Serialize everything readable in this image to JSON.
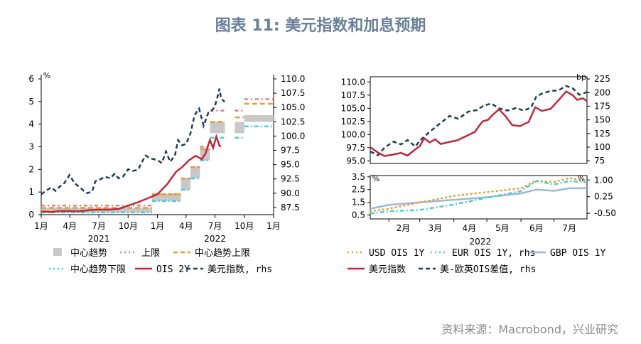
{
  "page": {
    "title": "图表 11: 美元指数和加息预期",
    "source": "资料来源：Macrobond，兴业研究"
  },
  "colors": {
    "dxy": "#c0283a",
    "spread": "#233a5c",
    "center": "#c8c8c8",
    "upper": "#e8788c",
    "upperBand": "#e2a030",
    "lowerBand": "#4ecdd8",
    "usd": "#e2a030",
    "eur": "#4ecdd8",
    "gbp": "#9db8d8"
  },
  "chart_data": [
    {
      "type": "line",
      "panel": "left",
      "x_range": [
        "2021-01-01",
        "2023-01-01"
      ],
      "x_ticks": [
        "1月",
        "4月",
        "7月",
        "10月",
        "1月",
        "4月",
        "7月",
        "10月",
        "1月"
      ],
      "year_labels": [
        "2021",
        "2022"
      ],
      "y_left": {
        "unit": "%",
        "range": [
          0,
          6
        ],
        "ticks": [
          "0",
          "1",
          "2",
          "3",
          "4",
          "5",
          "6"
        ]
      },
      "y_right": {
        "range": [
          86.25,
          110
        ],
        "ticks": [
          "87.5",
          "90.0",
          "92.5",
          "95.0",
          "97.5",
          "100.0",
          "102.5",
          "105.0",
          "107.5",
          "110.0"
        ]
      },
      "legend": [
        "中心趋势",
        "上限",
        "中心趋势上限",
        "中心趋势下限",
        "OIS 2Y",
        "美元指数, rhs"
      ],
      "dot_plot_steps": [
        {
          "from": "2021-01-01",
          "to": "2021-12-15",
          "center": [
            0.1,
            0.3
          ],
          "upper": 0.4,
          "upper_band": 0.3,
          "lower_band": 0.1
        },
        {
          "from": "2021-12-15",
          "to": "2022-03-16",
          "center": [
            0.6,
            0.9
          ],
          "upper": 0.9,
          "upper_band": 0.9,
          "lower_band": 0.6
        },
        {
          "from": "2022-03-16",
          "to": "2022-04-15",
          "center": [
            1.1,
            1.6
          ],
          "upper": 1.6,
          "upper_band": 1.6,
          "lower_band": 1.1
        },
        {
          "from": "2022-04-15",
          "to": "2022-05-15",
          "center": [
            1.6,
            2.1
          ],
          "upper": 2.1,
          "upper_band": 2.1,
          "lower_band": 1.6
        },
        {
          "from": "2022-05-15",
          "to": "2022-06-15",
          "center": [
            2.4,
            2.9
          ],
          "upper": 3.0,
          "upper_band": 2.9,
          "lower_band": 2.4
        },
        {
          "from": "2022-06-15",
          "to": "2022-08-01",
          "center": [
            3.6,
            4.1
          ],
          "upper": 4.6,
          "upper_band": 4.1,
          "lower_band": 3.4
        },
        {
          "from": "2022-09-01",
          "to": "2022-10-01",
          "center": [
            3.6,
            4.1
          ],
          "upper": 4.6,
          "upper_band": 4.3,
          "lower_band": 3.4
        },
        {
          "from": "2022-10-01",
          "to": "2023-01-01",
          "center": [
            4.1,
            4.4
          ],
          "upper": 5.1,
          "upper_band": 4.9,
          "lower_band": 3.9
        }
      ],
      "ois_2y": [
        [
          "2021-01-01",
          0.14
        ],
        [
          "2021-02-01",
          0.12
        ],
        [
          "2021-03-01",
          0.16
        ],
        [
          "2021-04-01",
          0.16
        ],
        [
          "2021-05-01",
          0.15
        ],
        [
          "2021-06-01",
          0.2
        ],
        [
          "2021-07-01",
          0.22
        ],
        [
          "2021-08-01",
          0.22
        ],
        [
          "2021-09-01",
          0.25
        ],
        [
          "2021-10-01",
          0.4
        ],
        [
          "2021-11-01",
          0.55
        ],
        [
          "2021-12-01",
          0.72
        ],
        [
          "2022-01-01",
          0.9
        ],
        [
          "2022-02-01",
          1.35
        ],
        [
          "2022-03-01",
          1.9
        ],
        [
          "2022-03-20",
          2.1
        ],
        [
          "2022-04-10",
          2.4
        ],
        [
          "2022-05-01",
          2.6
        ],
        [
          "2022-05-20",
          2.45
        ],
        [
          "2022-06-01",
          2.7
        ],
        [
          "2022-06-15",
          3.3
        ],
        [
          "2022-06-25",
          2.95
        ],
        [
          "2022-07-05",
          3.45
        ],
        [
          "2022-07-15",
          3.05
        ],
        [
          "2022-07-20",
          3.0
        ]
      ],
      "dxy": [
        [
          "2021-01-01",
          89.8
        ],
        [
          "2021-01-15",
          90.4
        ],
        [
          "2021-02-01",
          91.0
        ],
        [
          "2021-02-15",
          90.4
        ],
        [
          "2021-03-01",
          91.2
        ],
        [
          "2021-03-15",
          91.8
        ],
        [
          "2021-03-31",
          93.2
        ],
        [
          "2021-04-15",
          91.8
        ],
        [
          "2021-05-01",
          91.1
        ],
        [
          "2021-05-15",
          90.4
        ],
        [
          "2021-05-25",
          90.0
        ],
        [
          "2021-06-10",
          90.3
        ],
        [
          "2021-06-20",
          92.1
        ],
        [
          "2021-07-05",
          92.4
        ],
        [
          "2021-07-20",
          92.9
        ],
        [
          "2021-08-05",
          92.6
        ],
        [
          "2021-08-20",
          93.4
        ],
        [
          "2021-09-01",
          92.6
        ],
        [
          "2021-09-15",
          92.9
        ],
        [
          "2021-10-01",
          94.2
        ],
        [
          "2021-10-15",
          93.9
        ],
        [
          "2021-11-01",
          94.1
        ],
        [
          "2021-11-15",
          95.6
        ],
        [
          "2021-11-25",
          96.6
        ],
        [
          "2021-12-10",
          96.1
        ],
        [
          "2021-12-31",
          95.8
        ],
        [
          "2022-01-15",
          95.3
        ],
        [
          "2022-01-28",
          97.3
        ],
        [
          "2022-02-10",
          95.5
        ],
        [
          "2022-02-25",
          96.6
        ],
        [
          "2022-03-07",
          99.3
        ],
        [
          "2022-03-20",
          98.4
        ],
        [
          "2022-04-01",
          98.6
        ],
        [
          "2022-04-15",
          100.5
        ],
        [
          "2022-04-28",
          103.7
        ],
        [
          "2022-05-12",
          104.8
        ],
        [
          "2022-05-26",
          101.8
        ],
        [
          "2022-06-10",
          104.1
        ],
        [
          "2022-06-20",
          104.4
        ],
        [
          "2022-06-30",
          105.1
        ],
        [
          "2022-07-10",
          107.1
        ],
        [
          "2022-07-15",
          108.3
        ],
        [
          "2022-07-20",
          106.6
        ],
        [
          "2022-07-31",
          106.0
        ]
      ]
    },
    {
      "type": "line",
      "panel": "right-top",
      "x_range": [
        "2022-01-15",
        "2022-07-31"
      ],
      "y_left": {
        "range": [
          94.5,
          111
        ],
        "ticks": [
          "95.0",
          "97.5",
          "100.0",
          "102.5",
          "105.0",
          "107.5",
          "110.0"
        ]
      },
      "y_right": {
        "unit": "bp",
        "range": [
          70,
          229
        ],
        "ticks": [
          "75",
          "100",
          "125",
          "150",
          "175",
          "200",
          "225"
        ]
      },
      "legend": [
        "美元指数",
        "美-欧英OIS差值, rhs"
      ],
      "dxy": [
        [
          "2022-01-15",
          97.6
        ],
        [
          "2022-01-22",
          96.6
        ],
        [
          "2022-01-28",
          95.9
        ],
        [
          "2022-02-05",
          96.2
        ],
        [
          "2022-02-12",
          96.5
        ],
        [
          "2022-02-18",
          96.0
        ],
        [
          "2022-02-25",
          97.2
        ],
        [
          "2022-03-01",
          97.8
        ],
        [
          "2022-03-05",
          99.3
        ],
        [
          "2022-03-10",
          98.5
        ],
        [
          "2022-03-15",
          99.1
        ],
        [
          "2022-03-20",
          98.2
        ],
        [
          "2022-03-28",
          98.6
        ],
        [
          "2022-04-04",
          98.9
        ],
        [
          "2022-04-12",
          99.7
        ],
        [
          "2022-04-20",
          100.5
        ],
        [
          "2022-04-27",
          102.5
        ],
        [
          "2022-05-02",
          102.8
        ],
        [
          "2022-05-06",
          103.7
        ],
        [
          "2022-05-12",
          104.8
        ],
        [
          "2022-05-18",
          103.5
        ],
        [
          "2022-05-24",
          101.8
        ],
        [
          "2022-05-31",
          101.6
        ],
        [
          "2022-06-08",
          102.4
        ],
        [
          "2022-06-14",
          105.2
        ],
        [
          "2022-06-20",
          104.5
        ],
        [
          "2022-06-28",
          104.9
        ],
        [
          "2022-07-05",
          106.5
        ],
        [
          "2022-07-12",
          108.2
        ],
        [
          "2022-07-18",
          107.5
        ],
        [
          "2022-07-22",
          106.6
        ],
        [
          "2022-07-27",
          106.9
        ],
        [
          "2022-07-31",
          106.4
        ]
      ],
      "spread": [
        [
          "2022-01-15",
          92
        ],
        [
          "2022-01-22",
          85
        ],
        [
          "2022-01-28",
          99
        ],
        [
          "2022-02-05",
          110
        ],
        [
          "2022-02-12",
          105
        ],
        [
          "2022-02-18",
          113
        ],
        [
          "2022-02-25",
          101
        ],
        [
          "2022-03-01",
          112
        ],
        [
          "2022-03-10",
          128
        ],
        [
          "2022-03-18",
          141
        ],
        [
          "2022-03-28",
          157
        ],
        [
          "2022-04-05",
          152
        ],
        [
          "2022-04-14",
          165
        ],
        [
          "2022-04-22",
          168
        ],
        [
          "2022-04-28",
          176
        ],
        [
          "2022-05-05",
          180
        ],
        [
          "2022-05-12",
          171
        ],
        [
          "2022-05-20",
          167
        ],
        [
          "2022-05-28",
          172
        ],
        [
          "2022-06-03",
          167
        ],
        [
          "2022-06-10",
          172
        ],
        [
          "2022-06-15",
          193
        ],
        [
          "2022-06-20",
          198
        ],
        [
          "2022-06-28",
          203
        ],
        [
          "2022-07-05",
          204
        ],
        [
          "2022-07-12",
          212
        ],
        [
          "2022-07-18",
          208
        ],
        [
          "2022-07-24",
          196
        ],
        [
          "2022-07-31",
          201
        ]
      ]
    },
    {
      "type": "line",
      "panel": "right-bottom",
      "x_range": [
        "2022-01-15",
        "2022-07-31"
      ],
      "x_ticks": [
        "2月",
        "3月",
        "4月",
        "5月",
        "6月",
        "7月"
      ],
      "year_label": "2022",
      "y_left": {
        "unit": "%",
        "range": [
          0.2,
          3.6
        ],
        "ticks": [
          "0.5",
          "1.5",
          "2.5",
          "3.5"
        ]
      },
      "y_right": {
        "unit": "%",
        "range": [
          -0.75,
          1.2
        ],
        "ticks": [
          "1.00",
          "0.25",
          "-0.50"
        ]
      },
      "legend": [
        "USD OIS 1Y",
        "EUR OIS 1Y, rhs",
        "GBP OIS 1Y"
      ],
      "usd": [
        [
          "2022-01-15",
          0.8
        ],
        [
          "2022-02-01",
          1.0
        ],
        [
          "2022-03-01",
          1.5
        ],
        [
          "2022-04-01",
          2.0
        ],
        [
          "2022-05-01",
          2.3
        ],
        [
          "2022-06-01",
          2.6
        ],
        [
          "2022-06-15",
          3.2
        ],
        [
          "2022-07-01",
          3.1
        ],
        [
          "2022-07-15",
          3.4
        ],
        [
          "2022-07-31",
          3.2
        ]
      ],
      "eur": [
        [
          "2022-01-15",
          -0.5
        ],
        [
          "2022-02-01",
          -0.4
        ],
        [
          "2022-03-01",
          -0.35
        ],
        [
          "2022-04-01",
          -0.1
        ],
        [
          "2022-05-01",
          0.2
        ],
        [
          "2022-06-01",
          0.5
        ],
        [
          "2022-06-15",
          0.95
        ],
        [
          "2022-07-01",
          0.8
        ],
        [
          "2022-07-15",
          0.95
        ],
        [
          "2022-07-31",
          0.9
        ]
      ],
      "gbp": [
        [
          "2022-01-15",
          1.0
        ],
        [
          "2022-02-01",
          1.3
        ],
        [
          "2022-03-01",
          1.5
        ],
        [
          "2022-04-01",
          1.7
        ],
        [
          "2022-05-01",
          1.9
        ],
        [
          "2022-06-01",
          2.2
        ],
        [
          "2022-06-15",
          2.5
        ],
        [
          "2022-07-01",
          2.4
        ],
        [
          "2022-07-15",
          2.6
        ],
        [
          "2022-07-31",
          2.6
        ]
      ]
    }
  ]
}
